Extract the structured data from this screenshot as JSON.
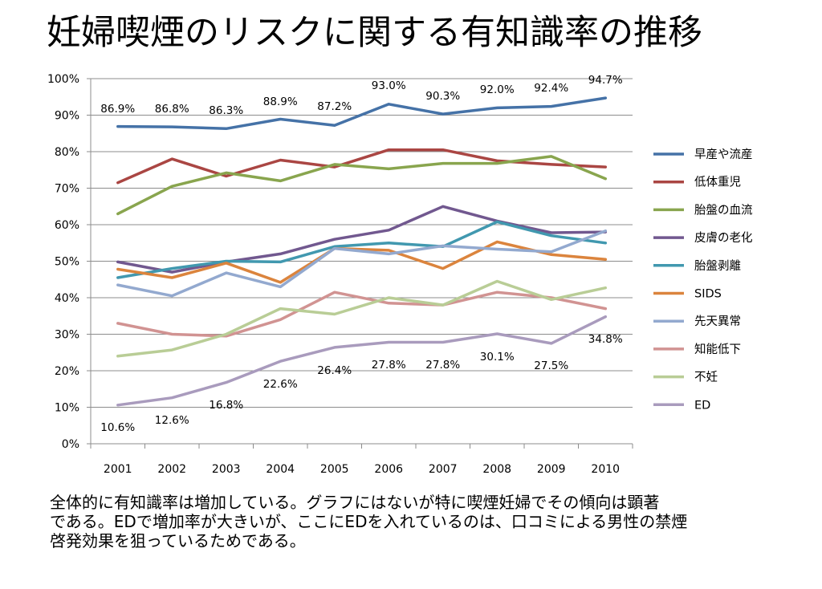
{
  "title": "妊婦喫煙のリスクに関する有知識率の推移",
  "caption": [
    "全体的に有知識率は増加している。グラフにはないが特に喫煙妊婦でその傾向は顕著",
    "である。EDで増加率が大きいが、ここにEDを入れているのは、口コミによる男性の禁煙",
    "啓発効果を狙っているためである。"
  ],
  "chart_data": {
    "type": "line",
    "title": "",
    "xlabel": "",
    "ylabel": "",
    "x": [
      "2001",
      "2002",
      "2003",
      "2004",
      "2005",
      "2006",
      "2007",
      "2008",
      "2009",
      "2010"
    ],
    "ylim": [
      0,
      100
    ],
    "yticks": [
      "0%",
      "10%",
      "20%",
      "30%",
      "40%",
      "50%",
      "60%",
      "70%",
      "80%",
      "90%",
      "100%"
    ],
    "grid": true,
    "legend": "right",
    "series": [
      {
        "name": "早産や流産",
        "color": "#4572a7",
        "values": [
          86.9,
          86.8,
          86.3,
          88.9,
          87.2,
          93.0,
          90.3,
          92.0,
          92.4,
          94.7
        ],
        "labels": [
          "86.9%",
          "86.8%",
          "86.3%",
          "88.9%",
          "87.2%",
          "93.0%",
          "90.3%",
          "92.0%",
          "92.4%",
          "94.7%"
        ]
      },
      {
        "name": "低体重児",
        "color": "#aa4643",
        "values": [
          71.5,
          78.0,
          73.3,
          77.7,
          75.8,
          80.5,
          80.5,
          77.5,
          76.5,
          75.8
        ]
      },
      {
        "name": "胎盤の血流",
        "color": "#89a54e",
        "values": [
          63.0,
          70.5,
          74.2,
          72.0,
          76.5,
          75.3,
          76.8,
          76.8,
          78.7,
          72.6
        ]
      },
      {
        "name": "皮膚の老化",
        "color": "#71588f",
        "values": [
          49.8,
          47.0,
          49.8,
          52.0,
          56.0,
          58.5,
          65.0,
          61.0,
          57.8,
          58.0
        ]
      },
      {
        "name": "胎盤剥離",
        "color": "#4198af",
        "values": [
          45.5,
          48.0,
          50.0,
          49.8,
          54.0,
          55.0,
          54.0,
          60.8,
          57.0,
          55.0
        ]
      },
      {
        "name": "SIDS",
        "color": "#db843d",
        "values": [
          47.8,
          45.5,
          49.5,
          44.2,
          53.5,
          53.0,
          48.0,
          55.3,
          51.8,
          50.5
        ]
      },
      {
        "name": "先天異常",
        "color": "#93a9cf",
        "values": [
          43.5,
          40.5,
          46.8,
          43.0,
          53.5,
          52.0,
          54.2,
          53.3,
          52.6,
          58.3
        ]
      },
      {
        "name": "知能低下",
        "color": "#d19392",
        "values": [
          33.0,
          30.0,
          29.5,
          34.0,
          41.5,
          38.5,
          38.0,
          41.5,
          40.0,
          37.0
        ]
      },
      {
        "name": "不妊",
        "color": "#b9cd96",
        "values": [
          24.0,
          25.7,
          30.0,
          37.0,
          35.5,
          40.0,
          38.0,
          44.5,
          39.5,
          42.7
        ]
      },
      {
        "name": "ED",
        "color": "#a99bbd",
        "values": [
          10.6,
          12.6,
          16.8,
          22.6,
          26.4,
          27.8,
          27.8,
          30.1,
          27.5,
          34.8
        ],
        "labels": [
          "10.6%",
          "12.6%",
          "16.8%",
          "22.6%",
          "26.4%",
          "27.8%",
          "27.8%",
          "30.1%",
          "27.5%",
          "34.8%"
        ]
      }
    ]
  }
}
